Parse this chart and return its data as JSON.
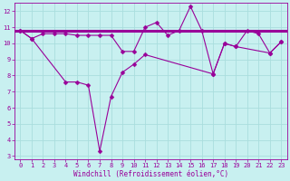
{
  "xlabel": "Windchill (Refroidissement éolien,°C)",
  "bg_color": "#c8f0f0",
  "line1_x": [
    0,
    1,
    2,
    3,
    4,
    5,
    6,
    7,
    8,
    9,
    10,
    11,
    12,
    13,
    14,
    15,
    16,
    17,
    18,
    19,
    20,
    21,
    22,
    23
  ],
  "line1_y": [
    10.8,
    10.3,
    10.6,
    10.6,
    10.6,
    10.5,
    10.5,
    10.5,
    10.5,
    9.5,
    9.5,
    11.0,
    11.3,
    10.5,
    10.8,
    12.3,
    10.8,
    8.1,
    10.0,
    9.8,
    10.8,
    10.6,
    9.4,
    10.1
  ],
  "line2_x": [
    0,
    1,
    4,
    5,
    6,
    7,
    8,
    9,
    10,
    11,
    17,
    18,
    19,
    22,
    23
  ],
  "line2_y": [
    10.8,
    10.3,
    7.6,
    7.6,
    7.4,
    3.3,
    6.7,
    8.2,
    8.7,
    9.3,
    8.1,
    10.0,
    9.8,
    9.4,
    10.1
  ],
  "hline_y": 10.8,
  "line_color": "#990099",
  "xlim": [
    -0.5,
    23.5
  ],
  "ylim": [
    2.8,
    12.5
  ],
  "yticks": [
    3,
    4,
    5,
    6,
    7,
    8,
    9,
    10,
    11,
    12
  ],
  "xticks": [
    0,
    1,
    2,
    3,
    4,
    5,
    6,
    7,
    8,
    9,
    10,
    11,
    12,
    13,
    14,
    15,
    16,
    17,
    18,
    19,
    20,
    21,
    22,
    23
  ],
  "grid_color": "#aadddd",
  "marker": "D",
  "marker_size": 2.5,
  "lw": 0.8,
  "hline_lw": 2.2,
  "tick_fontsize": 5.0,
  "xlabel_fontsize": 5.5
}
